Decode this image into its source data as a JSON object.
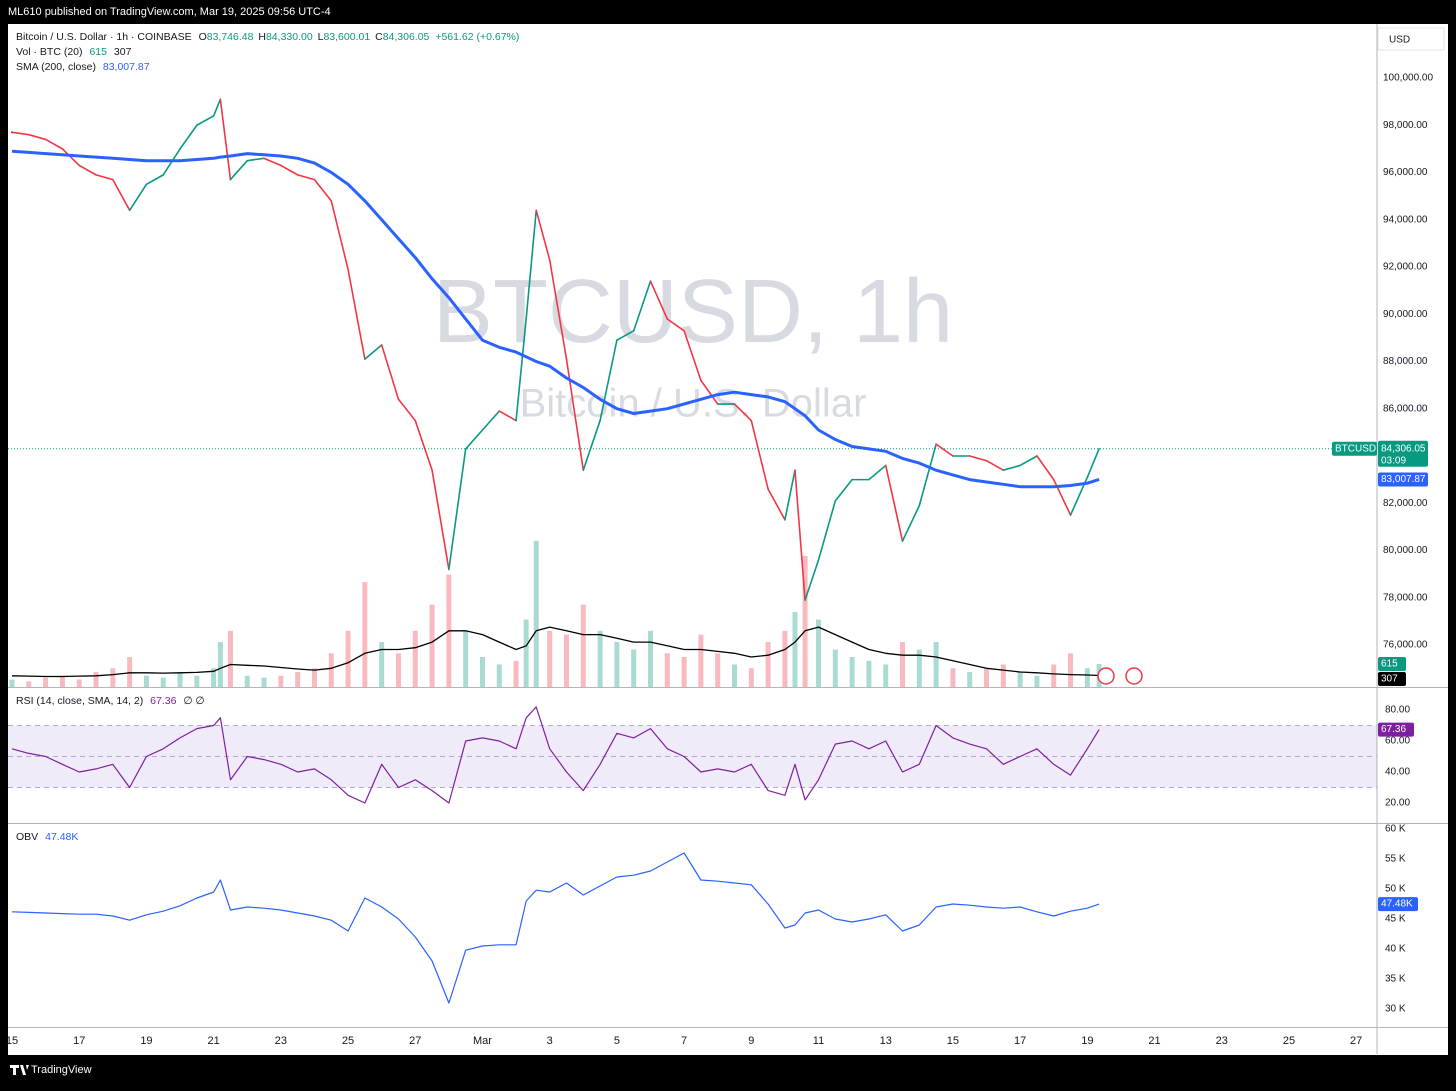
{
  "header": {
    "publisher": "ML610 published on TradingView.com, Mar 19, 2025 09:56 UTC-4"
  },
  "footer": {
    "brand": "TradingView"
  },
  "chart_data": {
    "type": "line",
    "symbol": "Bitcoin / U.S. Dollar · 1h · COINBASE",
    "ohlc": [
      {
        "label": "O",
        "value": "83,746.48"
      },
      {
        "label": "H",
        "value": "84,330.00"
      },
      {
        "label": "L",
        "value": "83,600.01"
      },
      {
        "label": "C",
        "value": "84,306.05"
      }
    ],
    "change": "+561.62 (+0.67%)",
    "currency": "USD",
    "watermark": "BTCUSD, 1h",
    "watermark_subtitle": "Bitcoin / U.S. Dollar",
    "ticker": "BTCUSD",
    "countdown": "03:09",
    "x": [
      0,
      0.5,
      1,
      1.5,
      2,
      2.5,
      3,
      3.5,
      4,
      4.5,
      5,
      5.5,
      6,
      6.2,
      6.5,
      7,
      7.5,
      8,
      8.5,
      9,
      9.5,
      10,
      10.5,
      11,
      11.5,
      12,
      12.5,
      13,
      13.5,
      14,
      14.5,
      15,
      15.3,
      15.6,
      16,
      16.5,
      17,
      17.5,
      18,
      18.5,
      19,
      19.5,
      20,
      20.5,
      21,
      21.5,
      22,
      22.5,
      23,
      23.3,
      23.6,
      24,
      24.5,
      25,
      25.5,
      26,
      26.5,
      27,
      27.5,
      28,
      28.5,
      29,
      29.5,
      30,
      30.5,
      31,
      31.5,
      32,
      32.35
    ],
    "xlim": [
      -0.12,
      40.62
    ],
    "xticks": [
      {
        "value": 0,
        "label": "15"
      },
      {
        "value": 2,
        "label": "17"
      },
      {
        "value": 4,
        "label": "19"
      },
      {
        "value": 6,
        "label": "21"
      },
      {
        "value": 8,
        "label": "23"
      },
      {
        "value": 10,
        "label": "25"
      },
      {
        "value": 12,
        "label": "27"
      },
      {
        "value": 14,
        "label": "Mar"
      },
      {
        "value": 16,
        "label": "3"
      },
      {
        "value": 18,
        "label": "5"
      },
      {
        "value": 20,
        "label": "7"
      },
      {
        "value": 22,
        "label": "9"
      },
      {
        "value": 24,
        "label": "11"
      },
      {
        "value": 26,
        "label": "13"
      },
      {
        "value": 28,
        "label": "15"
      },
      {
        "value": 30,
        "label": "17"
      },
      {
        "value": 32,
        "label": "19"
      },
      {
        "value": 34,
        "label": "21"
      },
      {
        "value": 36,
        "label": "23"
      },
      {
        "value": 38,
        "label": "25"
      },
      {
        "value": 40,
        "label": "27"
      }
    ],
    "ylim": [
      74222,
      102286
    ],
    "yticks": [
      {
        "value": 76000,
        "label": "76,000.00"
      },
      {
        "value": 78000,
        "label": "78,000.00"
      },
      {
        "value": 80000,
        "label": "80,000.00"
      },
      {
        "value": 82000,
        "label": "82,000.00"
      },
      {
        "value": 84000,
        "label": "84,000.00"
      },
      {
        "value": 86000,
        "label": "86,000.00"
      },
      {
        "value": 88000,
        "label": "88,000.00"
      },
      {
        "value": 90000,
        "label": "90,000.00"
      },
      {
        "value": 92000,
        "label": "92,000.00"
      },
      {
        "value": 94000,
        "label": "94,000.00"
      },
      {
        "value": 96000,
        "label": "96,000.00"
      },
      {
        "value": 98000,
        "label": "98,000.00"
      },
      {
        "value": 100000,
        "label": "100,000.00"
      }
    ],
    "price": {
      "up_color": "#089981",
      "down_color": "#f23645",
      "values": [
        97700,
        97600,
        97400,
        97000,
        96300,
        95900,
        95700,
        94400,
        95500,
        95900,
        97000,
        98000,
        98400,
        99100,
        95700,
        96500,
        96600,
        96300,
        95900,
        95700,
        94800,
        91900,
        88100,
        88700,
        86400,
        85500,
        83400,
        79200,
        84300,
        85100,
        85900,
        85500,
        89800,
        94400,
        92300,
        88100,
        83400,
        85500,
        88900,
        89300,
        91400,
        89800,
        89300,
        87200,
        86200,
        86200,
        85500,
        82600,
        81300,
        83400,
        77900,
        79600,
        82100,
        83000,
        83000,
        83600,
        80400,
        81900,
        84500,
        84000,
        84000,
        83800,
        83400,
        83600,
        84000,
        83000,
        81500,
        83100,
        84306.05
      ],
      "value_labels": {
        "68": "84,306.05"
      }
    },
    "sma": {
      "name": "SMA (200, close)",
      "color": "#2962ff",
      "values": [
        96900,
        96850,
        96800,
        96750,
        96700,
        96650,
        96600,
        96550,
        96500,
        96500,
        96500,
        96550,
        96600,
        96650,
        96700,
        96800,
        96750,
        96700,
        96600,
        96400,
        96000,
        95500,
        94800,
        94000,
        93200,
        92400,
        91500,
        90700,
        89800,
        88900,
        88600,
        88400,
        88200,
        88000,
        87800,
        87300,
        86900,
        86400,
        86000,
        85800,
        85900,
        86000,
        86200,
        86400,
        86600,
        86700,
        86600,
        86500,
        86300,
        86000,
        85700,
        85100,
        84700,
        84400,
        84300,
        84200,
        83900,
        83700,
        83400,
        83200,
        83000,
        82900,
        82800,
        82700,
        82700,
        82700,
        82750,
        82850,
        83007.87
      ],
      "value_labels": {
        "68": "83,007.87"
      }
    },
    "volume": {
      "name": "Vol · BTC (20)",
      "vlim": [
        0,
        17700
      ],
      "ma_color": "#000000",
      "values": [
        200,
        150,
        250,
        300,
        200,
        400,
        500,
        800,
        300,
        250,
        400,
        300,
        500,
        1200,
        1500,
        300,
        250,
        300,
        400,
        500,
        900,
        1500,
        2800,
        1200,
        900,
        1500,
        2200,
        3000,
        1500,
        800,
        600,
        700,
        1800,
        3900,
        1500,
        1400,
        2200,
        1500,
        1200,
        1000,
        1500,
        900,
        800,
        1400,
        900,
        600,
        500,
        1200,
        1500,
        2000,
        3500,
        1800,
        1000,
        800,
        700,
        600,
        1200,
        1000,
        1200,
        500,
        400,
        500,
        600,
        400,
        300,
        600,
        900,
        500,
        615
      ],
      "ma_values": [
        300,
        290,
        280,
        280,
        290,
        300,
        330,
        380,
        380,
        370,
        380,
        390,
        420,
        500,
        600,
        580,
        560,
        520,
        480,
        450,
        500,
        650,
        900,
        1000,
        1000,
        1050,
        1200,
        1500,
        1500,
        1400,
        1200,
        1000,
        1100,
        1500,
        1600,
        1500,
        1400,
        1400,
        1300,
        1200,
        1200,
        1100,
        1000,
        1000,
        950,
        900,
        800,
        850,
        1000,
        1200,
        1500,
        1600,
        1400,
        1200,
        1000,
        900,
        850,
        850,
        800,
        700,
        600,
        500,
        450,
        400,
        380,
        350,
        330,
        320,
        307
      ]
    },
    "rsi": {
      "name": "RSI (14, close, SMA, 14, 2)",
      "color": "#7e1fa0",
      "extra": "∅ ∅",
      "values": [
        55,
        52,
        50,
        45,
        40,
        42,
        45,
        30,
        50,
        55,
        62,
        68,
        70,
        75,
        35,
        50,
        48,
        45,
        40,
        42,
        35,
        25,
        20,
        45,
        30,
        35,
        28,
        20,
        60,
        62,
        60,
        55,
        75,
        82,
        55,
        40,
        28,
        45,
        65,
        62,
        68,
        55,
        50,
        40,
        42,
        40,
        45,
        28,
        25,
        45,
        22,
        35,
        58,
        60,
        55,
        60,
        40,
        45,
        70,
        62,
        58,
        55,
        45,
        50,
        55,
        45,
        38,
        55,
        67.36
      ],
      "ylim": [
        7.1,
        94.2
      ],
      "yticks": [
        {
          "value": 20,
          "label": "20.00"
        },
        {
          "value": 40,
          "label": "40.00"
        },
        {
          "value": 60,
          "label": "60.00"
        },
        {
          "value": 80,
          "label": "80.00"
        }
      ],
      "bands": [
        30,
        50,
        70
      ]
    },
    "obv": {
      "name": "OBV",
      "color": "#2962ff",
      "values": [
        46.2,
        46.1,
        46,
        45.9,
        45.8,
        45.8,
        45.5,
        44.8,
        45.7,
        46.3,
        47.2,
        48.5,
        49.5,
        51.5,
        46.5,
        47,
        46.8,
        46.5,
        46,
        45.5,
        44.8,
        43,
        48.5,
        47,
        45,
        42,
        38,
        31,
        39.8,
        40.5,
        40.7,
        40.7,
        48,
        49.8,
        49.5,
        51,
        49,
        50.5,
        52,
        52.3,
        53,
        54.5,
        56,
        51.5,
        51.3,
        51,
        50.7,
        47.5,
        43.5,
        44,
        46,
        46.5,
        45,
        44.5,
        45,
        45.7,
        43,
        44,
        47,
        47.5,
        47.3,
        47,
        46.8,
        47,
        46.2,
        45.5,
        46.3,
        46.8,
        47.48
      ],
      "value_labels": {
        "68": "47.48K"
      },
      "ylim": [
        27.0,
        60.83
      ],
      "yticks": [
        {
          "value": 30,
          "label": "30 K"
        },
        {
          "value": 35,
          "label": "35 K"
        },
        {
          "value": 40,
          "label": "40 K"
        },
        {
          "value": 45,
          "label": "45 K"
        },
        {
          "value": 50,
          "label": "50 K"
        },
        {
          "value": 55,
          "label": "55 K"
        },
        {
          "value": 60,
          "label": "60 K"
        }
      ]
    }
  }
}
